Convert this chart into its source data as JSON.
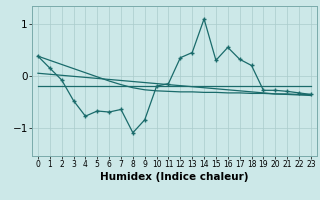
{
  "xlabel": "Humidex (Indice chaleur)",
  "bg_color": "#cce8e8",
  "grid_color": "#aacccc",
  "line_color": "#1a6b6b",
  "xlim": [
    -0.5,
    23.5
  ],
  "ylim": [
    -1.55,
    1.35
  ],
  "x": [
    0,
    1,
    2,
    3,
    4,
    5,
    6,
    7,
    8,
    9,
    10,
    11,
    12,
    13,
    14,
    15,
    16,
    17,
    18,
    19,
    20,
    21,
    22,
    23
  ],
  "y_main": [
    0.38,
    0.15,
    -0.08,
    -0.48,
    -0.78,
    -0.68,
    -0.7,
    -0.65,
    -1.1,
    -0.85,
    -0.2,
    -0.15,
    0.35,
    0.45,
    1.1,
    0.3,
    0.55,
    0.32,
    0.2,
    -0.28,
    -0.28,
    -0.3,
    -0.33,
    -0.36
  ],
  "y_trend1": [
    0.38,
    0.3,
    0.22,
    0.14,
    0.06,
    -0.02,
    -0.1,
    -0.17,
    -0.23,
    -0.27,
    -0.29,
    -0.3,
    -0.31,
    -0.31,
    -0.32,
    -0.32,
    -0.33,
    -0.33,
    -0.34,
    -0.34,
    -0.35,
    -0.35,
    -0.36,
    -0.36
  ],
  "y_flat": [
    -0.2,
    -0.2,
    -0.2,
    -0.2,
    -0.2,
    -0.2,
    -0.2,
    -0.2,
    -0.2,
    -0.2,
    -0.2,
    -0.2,
    -0.2,
    -0.2,
    -0.2,
    -0.2,
    -0.2,
    -0.2,
    -0.2,
    -0.2,
    -0.2,
    -0.2,
    -0.2,
    -0.2
  ],
  "y_trend2": [
    0.05,
    0.03,
    0.01,
    -0.01,
    -0.03,
    -0.05,
    -0.07,
    -0.09,
    -0.11,
    -0.13,
    -0.15,
    -0.17,
    -0.19,
    -0.21,
    -0.23,
    -0.25,
    -0.27,
    -0.29,
    -0.31,
    -0.33,
    -0.35,
    -0.36,
    -0.37,
    -0.38
  ],
  "yticks": [
    -1,
    0,
    1
  ],
  "xtick_fontsize": 5.5,
  "ytick_fontsize": 7.5,
  "xlabel_fontsize": 7.5
}
